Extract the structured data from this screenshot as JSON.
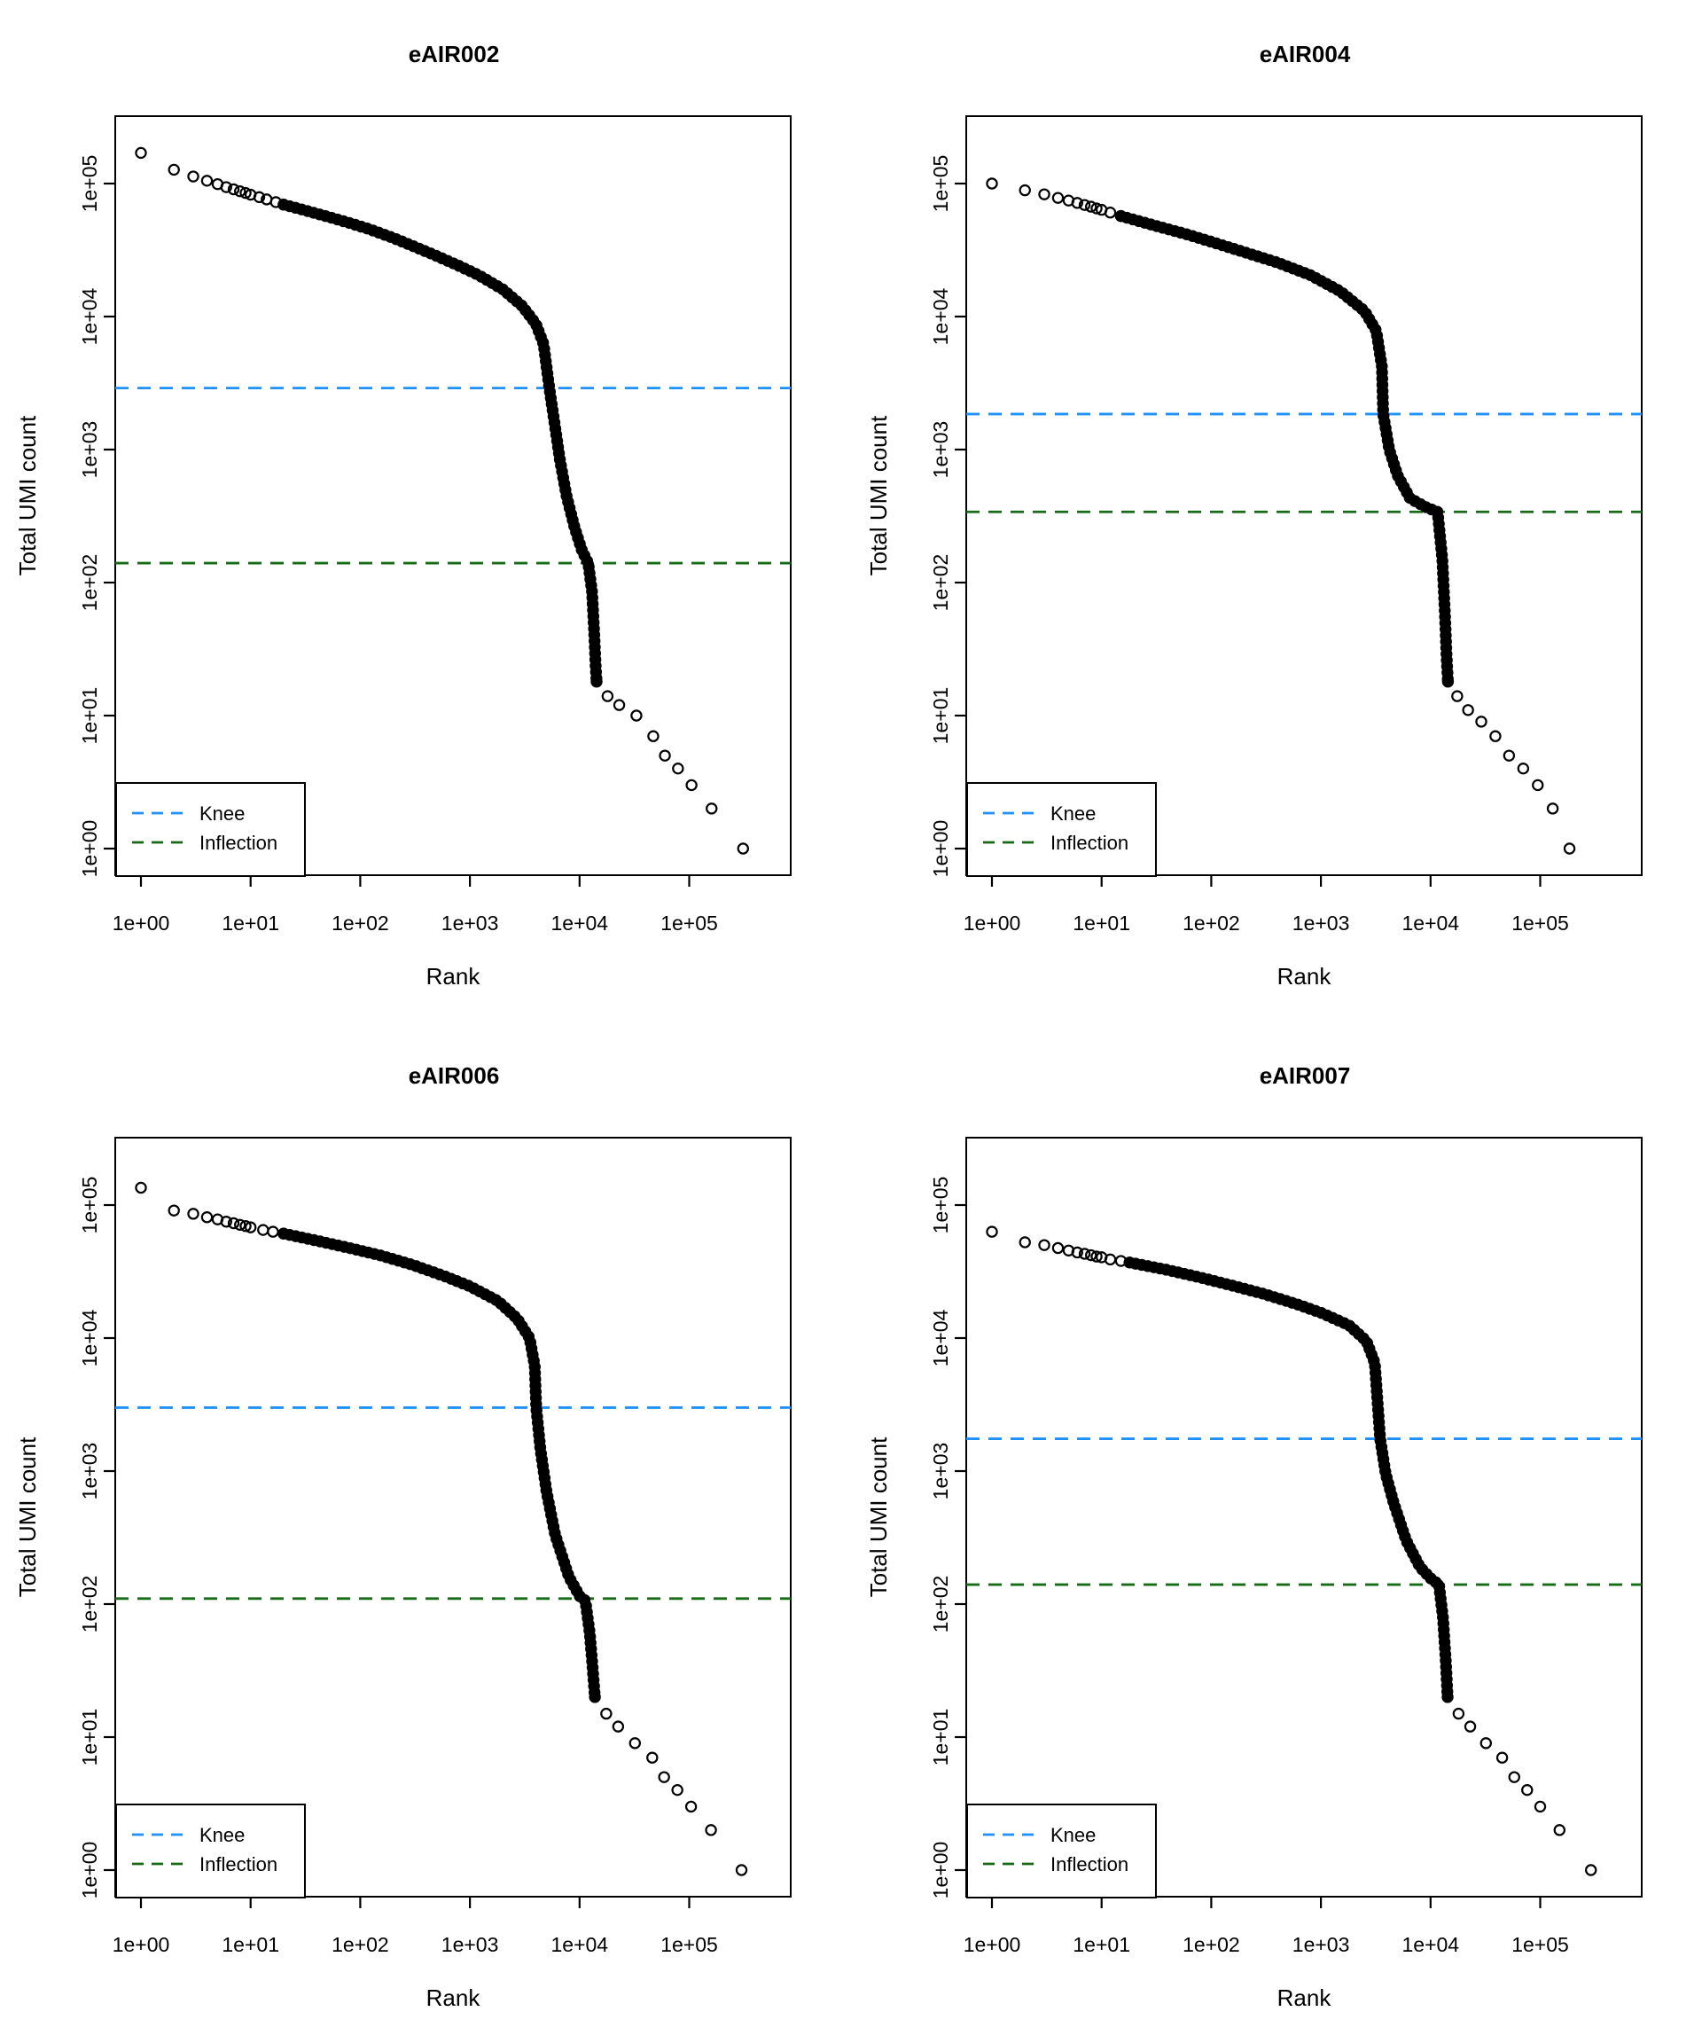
{
  "figure": {
    "background": "#FFFFFF",
    "point_color": "#000000",
    "axis_color": "#000000"
  },
  "chart_data": {
    "type": "scatter",
    "subtype": "barcode-rank-knee-plot",
    "layout": {
      "rows": 2,
      "cols": 2
    },
    "xlabel": "Rank",
    "ylabel": "Total UMI count",
    "x_scale": "log10",
    "y_scale": "log10",
    "x_ticks": [
      "1e+00",
      "1e+01",
      "1e+02",
      "1e+03",
      "1e+04",
      "1e+05"
    ],
    "y_ticks": [
      "1e+00",
      "1e+01",
      "1e+02",
      "1e+03",
      "1e+04",
      "1e+05"
    ],
    "x_log_range": [
      0,
      5
    ],
    "y_log_range": [
      0,
      5
    ],
    "grid": false,
    "legend_position": "bottom-left",
    "legend": [
      {
        "label": "Knee",
        "color": "#1E90FF",
        "style": "dashed"
      },
      {
        "label": "Inflection",
        "color": "#166B16",
        "style": "dashed"
      }
    ],
    "panels": [
      {
        "title": "eAIR002",
        "knee": 2900,
        "inflection": 140,
        "head": [
          [
            1,
            170000
          ],
          [
            2,
            127000
          ],
          [
            3,
            113000
          ],
          [
            4,
            105000
          ],
          [
            5,
            99000
          ],
          [
            6,
            94000
          ],
          [
            7,
            90500
          ],
          [
            8,
            87500
          ],
          [
            9,
            85000
          ],
          [
            10,
            82500
          ],
          [
            12,
            79000
          ],
          [
            14,
            76000
          ],
          [
            17,
            72500
          ],
          [
            20,
            69500
          ]
        ],
        "band": [
          [
            20,
            69500
          ],
          [
            30,
            63500
          ],
          [
            50,
            56500
          ],
          [
            80,
            50500
          ],
          [
            120,
            45500
          ],
          [
            200,
            39000
          ],
          [
            300,
            34000
          ],
          [
            500,
            28500
          ],
          [
            800,
            24000
          ],
          [
            1200,
            20500
          ],
          [
            2000,
            16000
          ],
          [
            3000,
            12000
          ],
          [
            4000,
            8800
          ],
          [
            4700,
            6200
          ],
          [
            5300,
            2900
          ],
          [
            5900,
            1600
          ],
          [
            6600,
            850
          ],
          [
            7600,
            450
          ],
          [
            9000,
            260
          ],
          [
            10500,
            175
          ],
          [
            12000,
            140
          ],
          [
            13000,
            85
          ],
          [
            13600,
            42
          ],
          [
            14000,
            24
          ],
          [
            14300,
            18
          ]
        ],
        "tail": [
          [
            14300,
            18
          ],
          [
            18000,
            14
          ],
          [
            23000,
            12
          ],
          [
            33000,
            10
          ],
          [
            47000,
            7
          ],
          [
            60000,
            5
          ],
          [
            79000,
            4
          ],
          [
            105000,
            3
          ],
          [
            160000,
            2
          ],
          [
            310000,
            1
          ]
        ]
      },
      {
        "title": "eAIR004",
        "knee": 1850,
        "inflection": 340,
        "head": [
          [
            1,
            100000
          ],
          [
            2,
            89000
          ],
          [
            3,
            83000
          ],
          [
            4,
            78000
          ],
          [
            5,
            74500
          ],
          [
            6,
            71500
          ],
          [
            7,
            69000
          ],
          [
            8,
            67000
          ],
          [
            9,
            65000
          ],
          [
            10,
            63500
          ],
          [
            12,
            60500
          ],
          [
            15,
            57000
          ]
        ],
        "band": [
          [
            15,
            57000
          ],
          [
            30,
            48500
          ],
          [
            60,
            41500
          ],
          [
            100,
            36500
          ],
          [
            200,
            30500
          ],
          [
            400,
            25500
          ],
          [
            800,
            20500
          ],
          [
            1500,
            15500
          ],
          [
            2500,
            11000
          ],
          [
            3200,
            7800
          ],
          [
            3600,
            4200
          ],
          [
            3700,
            1850
          ],
          [
            4200,
            1000
          ],
          [
            5000,
            640
          ],
          [
            6500,
            430
          ],
          [
            9000,
            370
          ],
          [
            11600,
            340
          ],
          [
            12800,
            150
          ],
          [
            13500,
            60
          ],
          [
            14000,
            28
          ],
          [
            14400,
            18
          ]
        ],
        "tail": [
          [
            14400,
            18
          ],
          [
            17500,
            14
          ],
          [
            22000,
            11
          ],
          [
            29000,
            9
          ],
          [
            39000,
            7
          ],
          [
            52000,
            5
          ],
          [
            70000,
            4
          ],
          [
            95000,
            3
          ],
          [
            130000,
            2
          ],
          [
            185000,
            1
          ]
        ]
      },
      {
        "title": "eAIR006",
        "knee": 3000,
        "inflection": 110,
        "head": [
          [
            1,
            135000
          ],
          [
            2,
            91000
          ],
          [
            3,
            86000
          ],
          [
            4,
            81000
          ],
          [
            5,
            78000
          ],
          [
            6,
            75000
          ],
          [
            7,
            73000
          ],
          [
            8,
            71000
          ],
          [
            9,
            69500
          ],
          [
            10,
            68000
          ],
          [
            13,
            65000
          ],
          [
            16,
            63000
          ],
          [
            20,
            61000
          ]
        ],
        "band": [
          [
            20,
            61000
          ],
          [
            40,
            54000
          ],
          [
            80,
            47500
          ],
          [
            150,
            42000
          ],
          [
            300,
            35500
          ],
          [
            600,
            29000
          ],
          [
            1000,
            24500
          ],
          [
            1800,
            19000
          ],
          [
            2700,
            14000
          ],
          [
            3500,
            10000
          ],
          [
            3900,
            6200
          ],
          [
            4030,
            2970
          ],
          [
            4400,
            1450
          ],
          [
            5000,
            700
          ],
          [
            6000,
            330
          ],
          [
            8000,
            160
          ],
          [
            10000,
            115
          ],
          [
            11300,
            106
          ],
          [
            12400,
            60
          ],
          [
            13200,
            32
          ],
          [
            13800,
            20
          ]
        ],
        "tail": [
          [
            13800,
            20
          ],
          [
            17500,
            15
          ],
          [
            22500,
            12
          ],
          [
            32000,
            9
          ],
          [
            46000,
            7
          ],
          [
            59000,
            5
          ],
          [
            78000,
            4
          ],
          [
            104000,
            3
          ],
          [
            158000,
            2
          ],
          [
            300000,
            1
          ]
        ]
      },
      {
        "title": "eAIR007",
        "knee": 1750,
        "inflection": 140,
        "head": [
          [
            1,
            63000
          ],
          [
            2,
            52500
          ],
          [
            3,
            50000
          ],
          [
            4,
            47500
          ],
          [
            5,
            45500
          ],
          [
            6,
            44000
          ],
          [
            7,
            43000
          ],
          [
            8,
            42000
          ],
          [
            9,
            41000
          ],
          [
            10,
            40500
          ],
          [
            12,
            39000
          ],
          [
            15,
            38000
          ],
          [
            18,
            37000
          ]
        ],
        "band": [
          [
            18,
            37000
          ],
          [
            40,
            32500
          ],
          [
            80,
            28500
          ],
          [
            150,
            25000
          ],
          [
            300,
            21500
          ],
          [
            600,
            18000
          ],
          [
            1000,
            15500
          ],
          [
            1800,
            12500
          ],
          [
            2600,
            9500
          ],
          [
            3100,
            6500
          ],
          [
            3470,
            1750
          ],
          [
            3900,
            950
          ],
          [
            4600,
            580
          ],
          [
            6000,
            300
          ],
          [
            8000,
            190
          ],
          [
            10500,
            150
          ],
          [
            11900,
            142
          ],
          [
            13000,
            78
          ],
          [
            13800,
            36
          ],
          [
            14300,
            20
          ]
        ],
        "tail": [
          [
            14300,
            20
          ],
          [
            18000,
            15
          ],
          [
            23000,
            12
          ],
          [
            32000,
            9
          ],
          [
            45000,
            7
          ],
          [
            58000,
            5
          ],
          [
            76000,
            4
          ],
          [
            100000,
            3
          ],
          [
            150000,
            2
          ],
          [
            290000,
            1
          ]
        ]
      }
    ]
  }
}
